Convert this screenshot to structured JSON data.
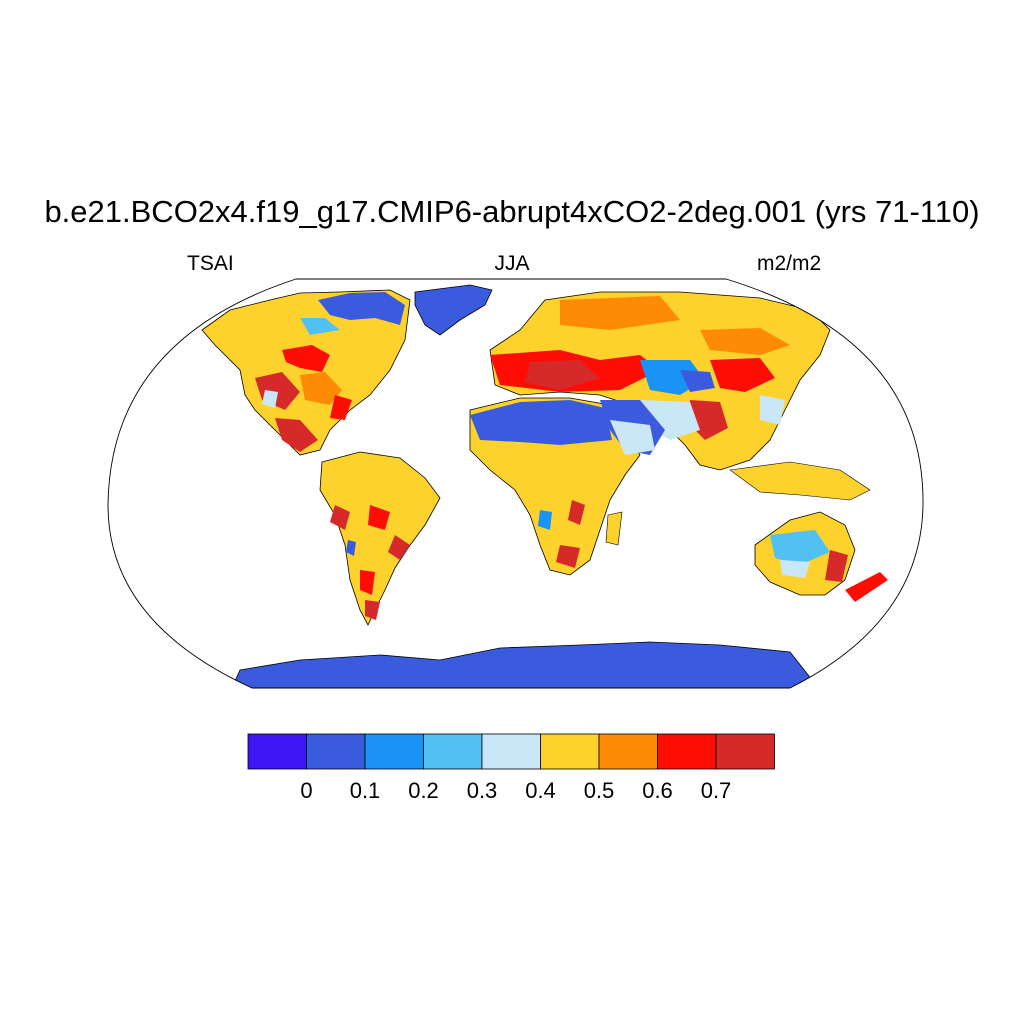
{
  "title": "b.e21.BCO2x4.f19_g17.CMIP6-abrupt4xCO2-2deg.001 (yrs 71-110)",
  "left_label": "TSAI",
  "center_label": "JJA",
  "right_label": "m2/m2",
  "colorbar": {
    "colors": [
      "#3f16f4",
      "#3a5bde",
      "#1a93f7",
      "#51c0f2",
      "#cae7f7",
      "#fed22c",
      "#fe8a05",
      "#fe0d05",
      "#d62a2a"
    ],
    "tick_labels": [
      "0",
      "0.1",
      "0.2",
      "0.3",
      "0.4",
      "0.5",
      "0.6",
      "0.7"
    ]
  },
  "legend": {
    "ocean": "#ffffff",
    "coastline": "#000000"
  }
}
